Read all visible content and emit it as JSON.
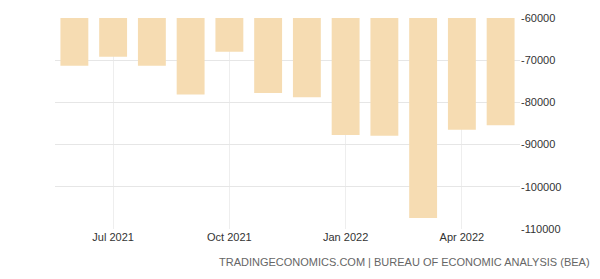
{
  "chart_data": {
    "type": "bar",
    "categories": [
      null,
      "Jul 2021",
      null,
      null,
      "Oct 2021",
      null,
      null,
      "Jan 2022",
      null,
      null,
      "Apr 2022",
      null
    ],
    "values": [
      -71300,
      -69200,
      -71300,
      -78100,
      -68000,
      -77800,
      -78800,
      -87700,
      -87900,
      -107400,
      -86500,
      -85400
    ],
    "color": "#f6dcb2",
    "ylim": [
      -110000,
      -60000
    ],
    "yticks": [
      -60000,
      -70000,
      -80000,
      -90000,
      -100000,
      -110000
    ],
    "grid": true,
    "annotations": [
      "TRADINGECONOMICS.COM | BUREAU OF ECONOMIC ANALYSIS (BEA)"
    ]
  }
}
